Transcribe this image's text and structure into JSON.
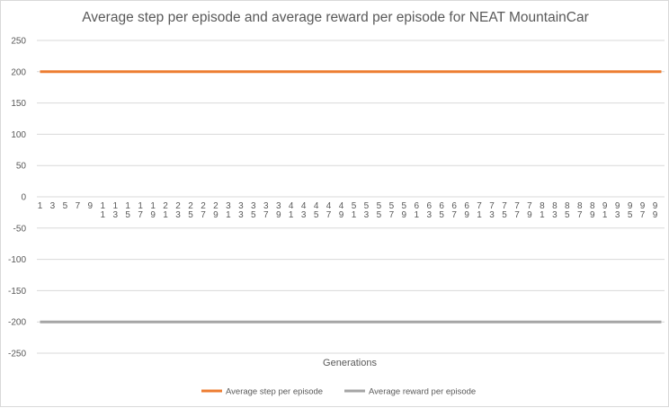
{
  "chart_data": {
    "type": "line",
    "title": "Average step per episode and average reward per episode for NEAT MountainCar",
    "xlabel": "Generations",
    "ylabel": "",
    "ylim": [
      -250,
      250
    ],
    "yticks": [
      250,
      200,
      150,
      100,
      50,
      0,
      -50,
      -100,
      -150,
      -200,
      -250
    ],
    "grid": true,
    "legend_position": "bottom",
    "x": [
      1,
      2,
      3,
      4,
      5,
      6,
      7,
      8,
      9,
      10,
      11,
      12,
      13,
      14,
      15,
      16,
      17,
      18,
      19,
      20,
      21,
      22,
      23,
      24,
      25,
      26,
      27,
      28,
      29,
      30,
      31,
      32,
      33,
      34,
      35,
      36,
      37,
      38,
      39,
      40,
      41,
      42,
      43,
      44,
      45,
      46,
      47,
      48,
      49,
      50,
      51,
      52,
      53,
      54,
      55,
      56,
      57,
      58,
      59,
      60,
      61,
      62,
      63,
      64,
      65,
      66,
      67,
      68,
      69,
      70,
      71,
      72,
      73,
      74,
      75,
      76,
      77,
      78,
      79,
      80,
      81,
      82,
      83,
      84,
      85,
      86,
      87,
      88,
      89,
      90,
      91,
      92,
      93,
      94,
      95,
      96,
      97,
      98,
      99,
      100
    ],
    "x_tick_labels": [
      "1",
      "3",
      "5",
      "7",
      "9",
      "11",
      "13",
      "15",
      "17",
      "19",
      "21",
      "23",
      "25",
      "27",
      "29",
      "31",
      "33",
      "35",
      "37",
      "39",
      "41",
      "43",
      "45",
      "47",
      "49",
      "51",
      "53",
      "55",
      "57",
      "59",
      "61",
      "63",
      "65",
      "67",
      "69",
      "71",
      "73",
      "75",
      "77",
      "79",
      "81",
      "83",
      "85",
      "87",
      "89",
      "91",
      "93",
      "95",
      "97",
      "99"
    ],
    "series": [
      {
        "name": "Average step per episode",
        "color": "#ed7d31",
        "values": [
          200,
          200,
          200,
          200,
          200,
          200,
          200,
          200,
          200,
          200,
          200,
          200,
          200,
          200,
          200,
          200,
          200,
          200,
          200,
          200,
          200,
          200,
          200,
          200,
          200,
          200,
          200,
          200,
          200,
          200,
          200,
          200,
          200,
          200,
          200,
          200,
          200,
          200,
          200,
          200,
          200,
          200,
          200,
          200,
          200,
          200,
          200,
          200,
          200,
          200,
          200,
          200,
          200,
          200,
          200,
          200,
          200,
          200,
          200,
          200,
          200,
          200,
          200,
          200,
          200,
          200,
          200,
          200,
          200,
          200,
          200,
          200,
          200,
          200,
          200,
          200,
          200,
          200,
          200,
          200,
          200,
          200,
          200,
          200,
          200,
          200,
          200,
          200,
          200,
          200,
          200,
          200,
          200,
          200,
          200,
          200,
          200,
          200,
          200,
          200
        ]
      },
      {
        "name": "Average reward per episode",
        "color": "#a5a5a5",
        "values": [
          -200,
          -200,
          -200,
          -200,
          -200,
          -200,
          -200,
          -200,
          -200,
          -200,
          -200,
          -200,
          -200,
          -200,
          -200,
          -200,
          -200,
          -200,
          -200,
          -200,
          -200,
          -200,
          -200,
          -200,
          -200,
          -200,
          -200,
          -200,
          -200,
          -200,
          -200,
          -200,
          -200,
          -200,
          -200,
          -200,
          -200,
          -200,
          -200,
          -200,
          -200,
          -200,
          -200,
          -200,
          -200,
          -200,
          -200,
          -200,
          -200,
          -200,
          -200,
          -200,
          -200,
          -200,
          -200,
          -200,
          -200,
          -200,
          -200,
          -200,
          -200,
          -200,
          -200,
          -200,
          -200,
          -200,
          -200,
          -200,
          -200,
          -200,
          -200,
          -200,
          -200,
          -200,
          -200,
          -200,
          -200,
          -200,
          -200,
          -200,
          -200,
          -200,
          -200,
          -200,
          -200,
          -200,
          -200,
          -200,
          -200,
          -200,
          -200,
          -200,
          -200,
          -200,
          -200,
          -200,
          -200,
          -200,
          -200,
          -200
        ]
      }
    ]
  }
}
